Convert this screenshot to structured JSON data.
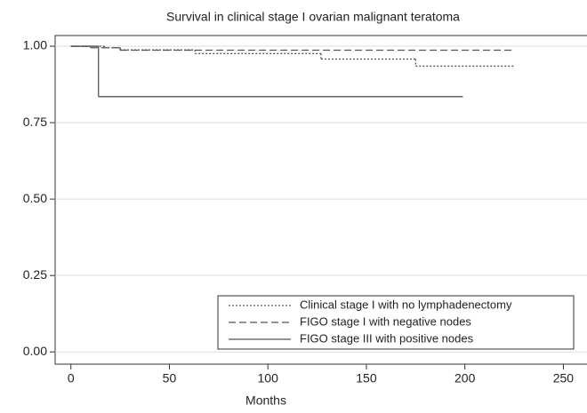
{
  "chart_data": {
    "type": "step",
    "title": "Survival in clinical stage I ovarian malignant teratoma",
    "x_label": "Months",
    "xlim": [
      -8,
      262
    ],
    "xticks": [
      0,
      50,
      100,
      150,
      200,
      250
    ],
    "ylim": [
      -0.04,
      1.035
    ],
    "yticks": [
      {
        "value": 0,
        "label": "0.00"
      },
      {
        "value": 0.25,
        "label": "0.25"
      },
      {
        "value": 0.5,
        "label": "0.50"
      },
      {
        "value": 0.75,
        "label": "0.75"
      },
      {
        "value": 1,
        "label": "1.00"
      }
    ],
    "grid": true,
    "legend": "lower right",
    "series": [
      {
        "name": "Clinical stage I with no lymphadenectomy",
        "color": "#555555",
        "dash": "dotted",
        "x": [
          0,
          17,
          25,
          63,
          127,
          175,
          225
        ],
        "values": [
          1,
          0.995,
          0.988,
          0.976,
          0.958,
          0.935,
          0.935
        ]
      },
      {
        "name": "FIGO stage I with negative nodes",
        "color": "#555555",
        "dash": "dashed",
        "x": [
          0,
          10,
          25,
          225
        ],
        "values": [
          1,
          0.995,
          0.987,
          0.987
        ]
      },
      {
        "name": "FIGO stage III with positive nodes",
        "color": "#555555",
        "dash": "solid",
        "x": [
          0,
          14,
          199
        ],
        "values": [
          1,
          0.835,
          0.835
        ]
      }
    ]
  }
}
